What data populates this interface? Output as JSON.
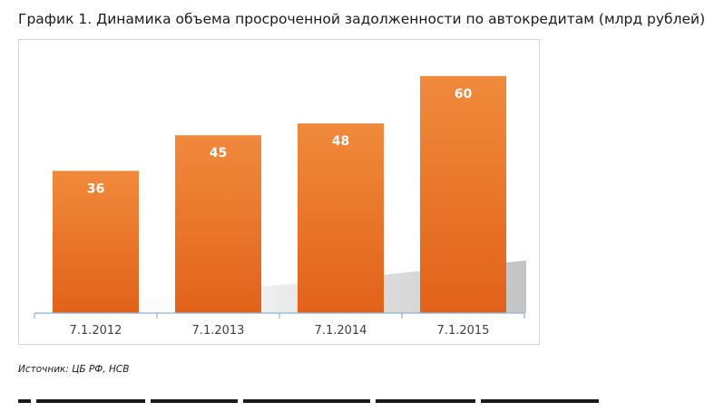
{
  "heading": "График 1. Динамика объема просроченной задолженности по автокредитам (млрд рублей)",
  "source_note": "Источник: ЦБ РФ, НСВ",
  "colors": {
    "bar_top": "#f08a3c",
    "bar_bottom": "#e2621a",
    "axis": "#8eb4d8",
    "value_label": "#ffffff",
    "category_label": "#404040"
  },
  "chart_data": {
    "type": "bar",
    "title": "",
    "xlabel": "",
    "ylabel": "",
    "categories": [
      "7.1.2012",
      "7.1.2013",
      "7.1.2014",
      "7.1.2015"
    ],
    "values": [
      36,
      45,
      48,
      60
    ],
    "ylim": [
      0,
      65
    ],
    "grid": false,
    "legend": "none",
    "data_labels": true
  }
}
